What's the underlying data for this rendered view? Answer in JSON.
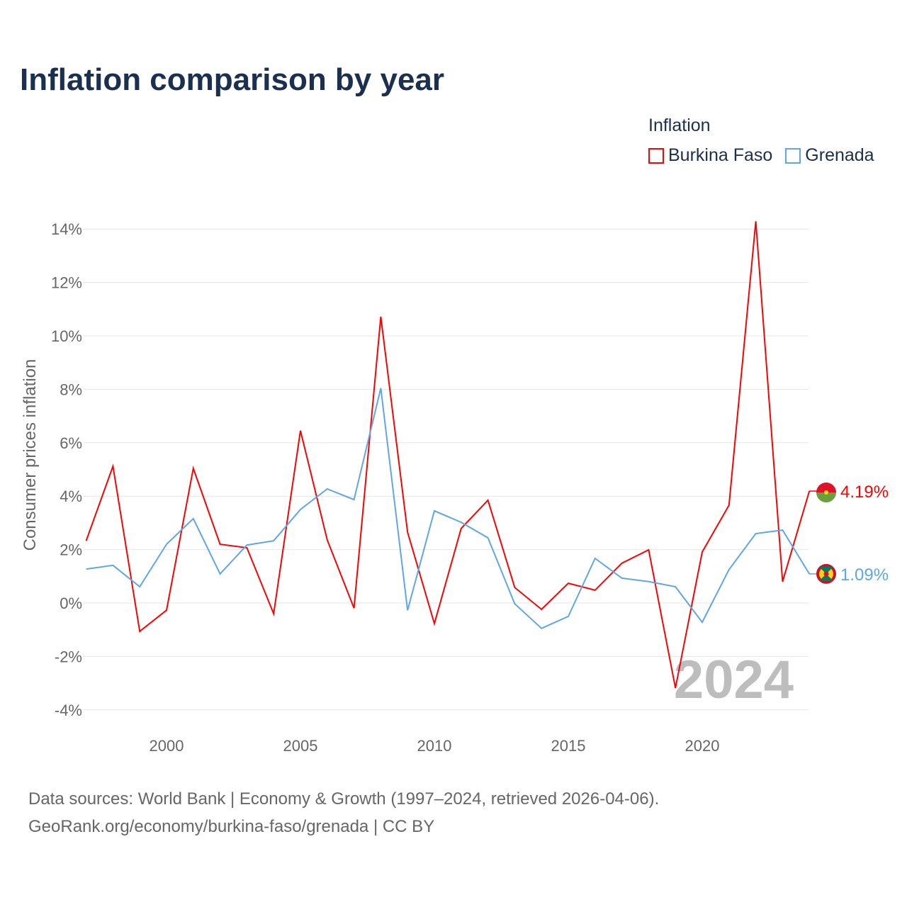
{
  "title": "Inflation comparison by year",
  "legend_title": "Inflation",
  "source_line1": "Data sources: World Bank | Economy & Growth (1997–2024, retrieved 2026-04-06).",
  "source_line2": "GeoRank.org/economy/burkina-faso/grenada | CC BY",
  "chart_data": {
    "type": "line",
    "title": "Inflation comparison by year",
    "xlabel": "",
    "ylabel": "Consumer prices inflation",
    "watermark": "2024",
    "ylim": [
      -4,
      14
    ],
    "yticks": [
      -4,
      -2,
      0,
      2,
      4,
      6,
      8,
      10,
      12,
      14
    ],
    "ytick_labels": [
      "-4%",
      "-2%",
      "0%",
      "2%",
      "4%",
      "6%",
      "8%",
      "10%",
      "12%",
      "14%"
    ],
    "xticks": [
      2000,
      2005,
      2010,
      2015,
      2020
    ],
    "xtick_labels": [
      "2000",
      "2005",
      "2010",
      "2015",
      "2020"
    ],
    "grid": true,
    "legend_position": "top-right",
    "x": [
      1997,
      1998,
      1999,
      2000,
      2001,
      2002,
      2003,
      2004,
      2005,
      2006,
      2007,
      2008,
      2009,
      2010,
      2011,
      2012,
      2013,
      2014,
      2015,
      2016,
      2017,
      2018,
      2019,
      2020,
      2021,
      2022,
      2023,
      2024
    ],
    "series": [
      {
        "name": "Burkina Faso",
        "color": "#ff0000",
        "end_label": "4.19%",
        "values": [
          2.33,
          5.12,
          -1.06,
          -0.27,
          5.04,
          2.2,
          2.07,
          -0.4,
          6.45,
          2.36,
          -0.19,
          10.72,
          2.65,
          -0.77,
          2.79,
          3.85,
          0.58,
          -0.24,
          0.74,
          0.48,
          1.49,
          1.99,
          -3.18,
          1.91,
          3.66,
          14.29,
          0.8,
          4.19
        ]
      },
      {
        "name": "Grenada",
        "color": "#5ea6e8",
        "end_label": "1.09%",
        "values": [
          1.27,
          1.41,
          0.61,
          2.2,
          3.16,
          1.09,
          2.17,
          2.33,
          3.5,
          4.27,
          3.87,
          8.04,
          -0.27,
          3.45,
          3.02,
          2.44,
          -0.03,
          -0.95,
          -0.5,
          1.67,
          0.93,
          0.8,
          0.61,
          -0.72,
          1.25,
          2.6,
          2.73,
          1.09
        ]
      }
    ]
  }
}
